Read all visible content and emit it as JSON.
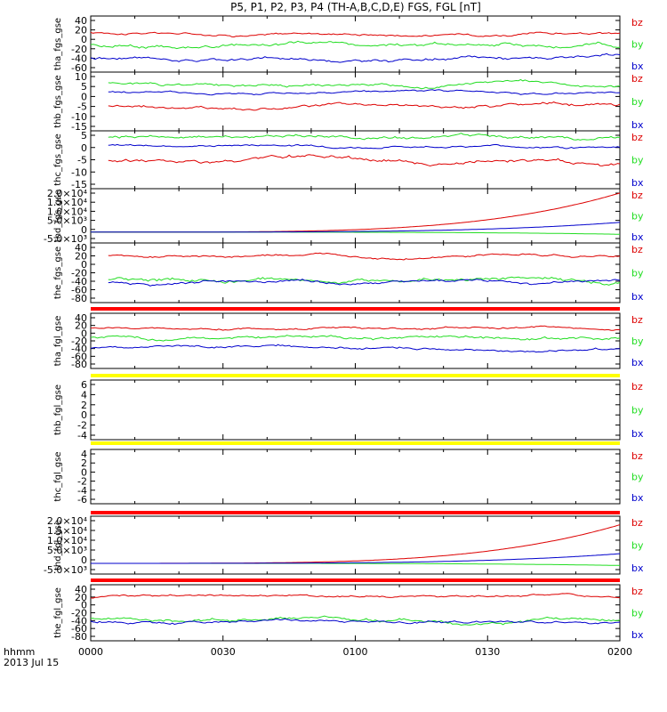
{
  "figure": {
    "title": "P5, P1, P2, P3, P4 (TH-A,B,C,D,E) FGS, FGL [nT]",
    "footer_line1": "hhmm",
    "footer_line2": "2013 Jul 15",
    "legend": [
      "bz",
      "by",
      "bx"
    ],
    "colors": {
      "bz": "#dd0000",
      "by": "#22dd22",
      "bx": "#0000cc",
      "bar_red": "#ff0000",
      "bar_yellow": "#ffff00"
    },
    "x_ticks": [
      "0000",
      "0030",
      "0100",
      "0130",
      "0200"
    ]
  },
  "chart_data": [
    {
      "type": "line",
      "ylabel": "tha_fgs_gse",
      "yticks": [
        "40",
        "20",
        "0",
        "-20",
        "-40",
        "-60"
      ],
      "ylim": [
        -70,
        45
      ],
      "x_range": [
        "00:00",
        "02:00"
      ],
      "series": [
        {
          "name": "bz",
          "level": 10,
          "noise": 4
        },
        {
          "name": "by",
          "level": -15,
          "noise": 6
        },
        {
          "name": "bx",
          "level": -42,
          "noise": 5
        }
      ]
    },
    {
      "type": "line",
      "ylabel": "thb_fgs_gse",
      "yticks": [
        "10",
        "5",
        "0",
        "-5",
        "-10",
        "-15"
      ],
      "ylim": [
        -15,
        11
      ],
      "x_range": [
        "00:04",
        "02:00"
      ],
      "series": [
        {
          "name": "bz",
          "level": -4,
          "noise": 1.2
        },
        {
          "name": "by",
          "level": 6,
          "noise": 1
        },
        {
          "name": "bx",
          "level": 2,
          "noise": 0.7
        }
      ]
    },
    {
      "type": "line",
      "ylabel": "thc_fgs_gse",
      "yticks": [
        "5",
        "0",
        "-5",
        "-10",
        "-15"
      ],
      "ylim": [
        -15,
        8
      ],
      "x_range": [
        "00:04",
        "02:00"
      ],
      "series": [
        {
          "name": "bz",
          "level": -4,
          "noise": 1.2
        },
        {
          "name": "by",
          "level": 5,
          "noise": 1
        },
        {
          "name": "bx",
          "level": 2,
          "noise": 0.7
        }
      ]
    },
    {
      "type": "line",
      "ylabel": "thd_fgs_gse",
      "yticks": [
        "2.0×10⁴",
        "1.5×10⁴",
        "1.0×10⁴",
        "5.0×10³",
        "0",
        "-5.0×10³"
      ],
      "ylim": [
        -5000,
        20000
      ],
      "x_range": [
        "00:00",
        "02:00"
      ],
      "series": [
        {
          "name": "bz",
          "start": 0,
          "end": 18000
        },
        {
          "name": "by",
          "start": 0,
          "end": -1000
        },
        {
          "name": "bx",
          "start": 0,
          "end": 4500
        }
      ]
    },
    {
      "type": "line",
      "ylabel": "the_fgs_gse",
      "yticks": [
        "40",
        "20",
        "0",
        "-20",
        "-40",
        "-60",
        "-80"
      ],
      "ylim": [
        -90,
        45
      ],
      "x_range": [
        "00:04",
        "02:00"
      ],
      "series": [
        {
          "name": "bz",
          "level": 15,
          "noise": 4
        },
        {
          "name": "by",
          "level": -38,
          "noise": 7
        },
        {
          "name": "bx",
          "level": -45,
          "noise": 5
        }
      ]
    },
    {
      "type": "line",
      "ylabel": "tha_fgl_gse",
      "yticks": [
        "40",
        "20",
        "0",
        "-20",
        "-40",
        "-60",
        "-80"
      ],
      "ylim": [
        -90,
        45
      ],
      "x_range": [
        "00:00",
        "02:00"
      ],
      "series": [
        {
          "name": "bz",
          "level": 10,
          "noise": 4
        },
        {
          "name": "by",
          "level": -15,
          "noise": 6
        },
        {
          "name": "bx",
          "level": -42,
          "noise": 5
        }
      ]
    },
    {
      "type": "line",
      "ylabel": "thb_fgl_gse",
      "yticks": [
        "6",
        "4",
        "2",
        "0",
        "-2",
        "-4"
      ],
      "ylim": [
        -5,
        7
      ],
      "x_range": [],
      "series": []
    },
    {
      "type": "line",
      "ylabel": "thc_fgl_gse",
      "yticks": [
        "4",
        "2",
        "0",
        "-2",
        "-4",
        "-6"
      ],
      "ylim": [
        -7,
        5
      ],
      "x_range": [],
      "series": []
    },
    {
      "type": "line",
      "ylabel": "thd_fgl_gse",
      "yticks": [
        "2.0×10⁴",
        "1.5×10⁴",
        "1.0×10⁴",
        "5.0×10³",
        "0",
        "-5.0×10³"
      ],
      "ylim": [
        -5000,
        22000
      ],
      "x_range": [
        "00:00",
        "02:00"
      ],
      "series": [
        {
          "name": "bz",
          "start": 0,
          "end": 18000
        },
        {
          "name": "by",
          "start": 0,
          "end": -1000
        },
        {
          "name": "bx",
          "start": 0,
          "end": 4500
        }
      ]
    },
    {
      "type": "line",
      "ylabel": "the_fgl_gse",
      "yticks": [
        "40",
        "20",
        "0",
        "-20",
        "-40",
        "-60",
        "-80"
      ],
      "ylim": [
        -90,
        45
      ],
      "x_range": [
        "00:00",
        "02:00"
      ],
      "series": [
        {
          "name": "bz",
          "level": 15,
          "noise": 4
        },
        {
          "name": "by",
          "level": -38,
          "noise": 7
        },
        {
          "name": "bx",
          "level": -45,
          "noise": 5
        }
      ]
    }
  ]
}
